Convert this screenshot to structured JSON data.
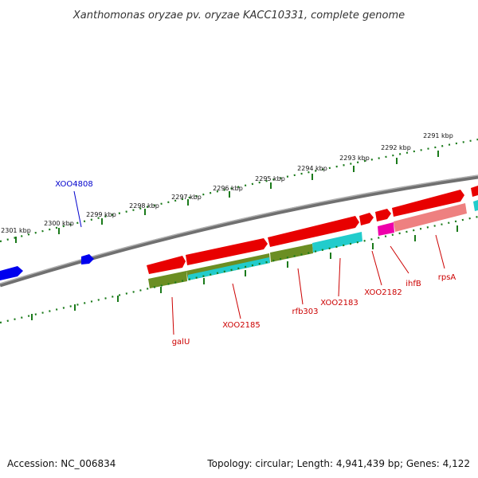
{
  "title": "Xanthomonas oryzae pv. oryzae KACC10331, complete genome",
  "footer": {
    "accession": "Accession: NC_006834",
    "topology": "Topology: circular; Length: 4,941,439 bp; Genes: 4,122"
  },
  "colors": {
    "backbone": "#808080",
    "forward_gene": "#e80000",
    "forward_gene_alt": "#ee8080",
    "cds_green": "#6b8e23",
    "cds_cyan": "#22cccc",
    "magenta": "#ee00aa",
    "blue": "#0000ee",
    "ticks": "#1a7a1a",
    "gene_label_red": "#cc0000",
    "gene_label_blue": "#0000cc"
  },
  "ticks_outer": [
    "2301 kbp",
    "2300 kbp",
    "2299 kbp",
    "2298 kbp",
    "2297 kbp",
    "2296 kbp",
    "2295 kbp",
    "2294 kbp",
    "2293 kbp",
    "2292 kbp",
    "2291 kbp"
  ],
  "gene_labels": {
    "xoo4808": "XOO4808",
    "galU": "galU",
    "xoo2185": "XOO2185",
    "rfb303": "rfb303",
    "xoo2183": "XOO2183",
    "xoo2182": "XOO2182",
    "ihfB": "ihfB",
    "rpsA": "rpsA"
  }
}
